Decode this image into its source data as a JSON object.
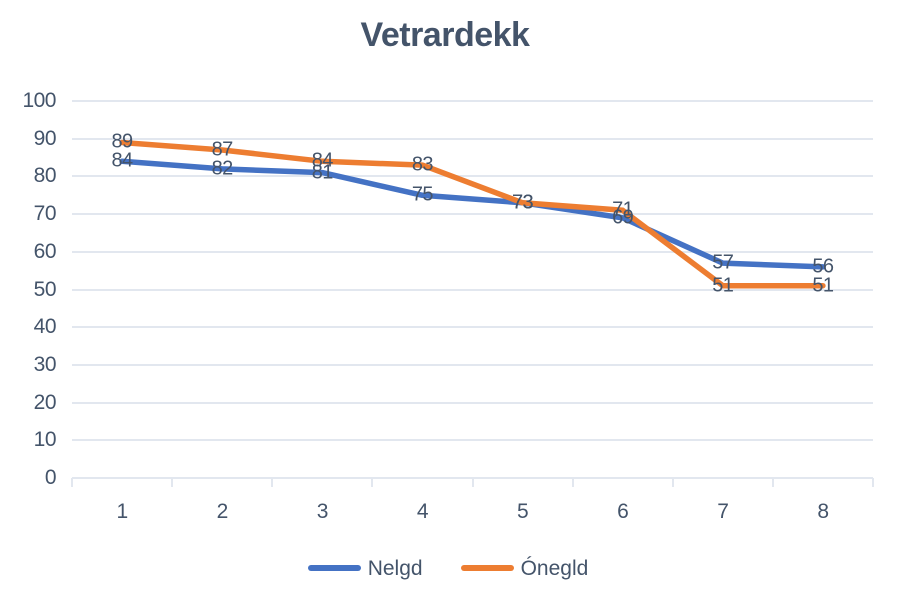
{
  "chart_data": {
    "type": "line",
    "title": "Vetrardekk",
    "categories": [
      "1",
      "2",
      "3",
      "4",
      "5",
      "6",
      "7",
      "8"
    ],
    "series": [
      {
        "name": "Nelgd",
        "color": "#4472C4",
        "values": [
          84,
          82,
          81,
          75,
          73,
          69,
          57,
          56
        ]
      },
      {
        "name": "Ónegld",
        "color": "#ED7D31",
        "values": [
          89,
          87,
          84,
          83,
          73,
          71,
          51,
          51
        ]
      }
    ],
    "xlabel": "",
    "ylabel": "",
    "ylim": [
      0,
      100
    ],
    "y_ticks": [
      0,
      10,
      20,
      30,
      40,
      50,
      60,
      70,
      80,
      90,
      100
    ],
    "grid": true,
    "data_labels": true,
    "legend_position": "bottom",
    "colors": {
      "title_text": "#44546A",
      "axis_text": "#44546A",
      "data_label_text": "#44546A",
      "gridline": "#e2e7ef",
      "background": "#ffffff"
    }
  }
}
